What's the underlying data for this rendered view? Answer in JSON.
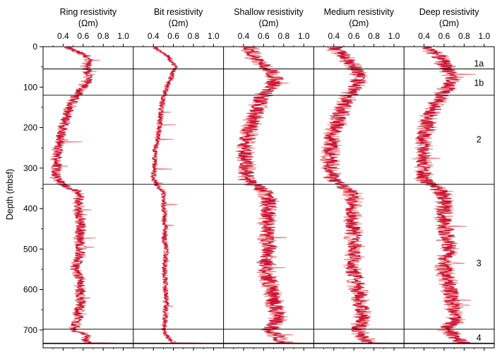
{
  "chart_data": {
    "type": "line",
    "ylabel": "Depth (mbsf)",
    "ylim": [
      0,
      750
    ],
    "y_inverted": true,
    "yticks": [
      0,
      100,
      200,
      300,
      400,
      500,
      600,
      700
    ],
    "xlim": [
      0.2,
      1.1
    ],
    "xticks": [
      0.4,
      0.6,
      0.8,
      1.0
    ],
    "xtick_labels": [
      "0.4",
      "0.6",
      "0.8",
      "1.0"
    ],
    "grid": false,
    "colors": {
      "line": "#cc1133",
      "line_light": "#ee7777",
      "frame": "#000000"
    },
    "unit_boundaries_depth": [
      55,
      120,
      340,
      698,
      733
    ],
    "units": [
      {
        "label": "1a",
        "depth": 42
      },
      {
        "label": "1b",
        "depth": 90
      },
      {
        "label": "2",
        "depth": 230
      },
      {
        "label": "3",
        "depth": 535
      },
      {
        "label": "4",
        "depth": 720
      }
    ],
    "panels": [
      {
        "title": "Ring resistivity",
        "unit": "(Ωm)",
        "depth": [
          0,
          25,
          50,
          75,
          100,
          125,
          150,
          175,
          200,
          225,
          250,
          275,
          300,
          325,
          340,
          360,
          380,
          400,
          425,
          450,
          475,
          500,
          525,
          550,
          575,
          600,
          625,
          650,
          675,
          700,
          710,
          720,
          730
        ],
        "resistivity": [
          0.42,
          0.65,
          0.63,
          0.66,
          0.6,
          0.52,
          0.47,
          0.43,
          0.4,
          0.37,
          0.35,
          0.34,
          0.34,
          0.33,
          0.4,
          0.55,
          0.56,
          0.55,
          0.57,
          0.58,
          0.56,
          0.58,
          0.55,
          0.52,
          0.57,
          0.57,
          0.58,
          0.56,
          0.55,
          0.5,
          0.62,
          0.62,
          0.64
        ]
      },
      {
        "title": "Bit resistivity",
        "unit": "(Ωm)",
        "depth": [
          0,
          25,
          50,
          75,
          100,
          125,
          150,
          175,
          200,
          225,
          250,
          275,
          300,
          325,
          340,
          360,
          380,
          400,
          425,
          450,
          475,
          500,
          525,
          550,
          575,
          600,
          625,
          650,
          675,
          700,
          710,
          720,
          730
        ],
        "resistivity": [
          0.4,
          0.55,
          0.62,
          0.58,
          0.53,
          0.5,
          0.48,
          0.47,
          0.46,
          0.44,
          0.42,
          0.41,
          0.41,
          0.4,
          0.43,
          0.5,
          0.5,
          0.51,
          0.51,
          0.52,
          0.51,
          0.53,
          0.52,
          0.51,
          0.52,
          0.52,
          0.53,
          0.52,
          0.52,
          0.5,
          0.52,
          0.55,
          0.6
        ]
      },
      {
        "title": "Shallow resistivity",
        "unit": "(Ωm)",
        "depth": [
          0,
          25,
          50,
          75,
          100,
          125,
          150,
          175,
          200,
          225,
          250,
          275,
          300,
          325,
          340,
          360,
          380,
          400,
          425,
          450,
          475,
          500,
          525,
          550,
          575,
          600,
          625,
          650,
          675,
          700,
          710,
          720,
          730
        ],
        "resistivity": [
          0.45,
          0.5,
          0.63,
          0.72,
          0.68,
          0.58,
          0.54,
          0.5,
          0.47,
          0.44,
          0.42,
          0.42,
          0.43,
          0.43,
          0.5,
          0.62,
          0.66,
          0.65,
          0.63,
          0.64,
          0.63,
          0.67,
          0.63,
          0.62,
          0.65,
          0.68,
          0.7,
          0.72,
          0.74,
          0.65,
          0.72,
          0.75,
          0.8
        ]
      },
      {
        "title": "Medium resistivity",
        "unit": "(Ωm)",
        "depth": [
          0,
          25,
          50,
          75,
          100,
          125,
          150,
          175,
          200,
          225,
          250,
          275,
          300,
          325,
          340,
          360,
          380,
          400,
          425,
          450,
          475,
          500,
          525,
          550,
          575,
          600,
          625,
          650,
          675,
          700,
          710,
          720,
          730
        ],
        "resistivity": [
          0.4,
          0.5,
          0.62,
          0.65,
          0.62,
          0.53,
          0.5,
          0.45,
          0.42,
          0.38,
          0.37,
          0.36,
          0.37,
          0.38,
          0.45,
          0.58,
          0.6,
          0.6,
          0.58,
          0.6,
          0.6,
          0.62,
          0.6,
          0.58,
          0.62,
          0.64,
          0.66,
          0.68,
          0.7,
          0.62,
          0.68,
          0.7,
          0.75
        ]
      },
      {
        "title": "Deep resistivity",
        "unit": "(Ωm)",
        "depth": [
          0,
          25,
          50,
          75,
          100,
          125,
          150,
          175,
          200,
          225,
          250,
          275,
          300,
          325,
          340,
          360,
          380,
          400,
          425,
          450,
          475,
          500,
          525,
          550,
          575,
          600,
          625,
          650,
          675,
          700,
          710,
          720,
          730
        ],
        "resistivity": [
          0.42,
          0.55,
          0.62,
          0.68,
          0.64,
          0.55,
          0.5,
          0.45,
          0.43,
          0.4,
          0.39,
          0.38,
          0.39,
          0.4,
          0.45,
          0.58,
          0.61,
          0.6,
          0.6,
          0.62,
          0.62,
          0.65,
          0.62,
          0.6,
          0.63,
          0.66,
          0.68,
          0.7,
          0.72,
          0.62,
          0.7,
          0.72,
          0.78
        ]
      }
    ]
  }
}
